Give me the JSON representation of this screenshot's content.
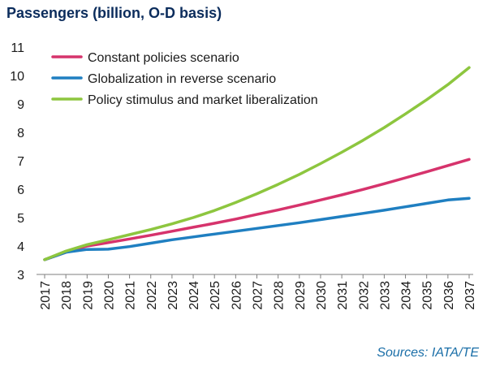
{
  "chart_data": {
    "type": "line",
    "title": "Passengers (billion, O-D basis)",
    "source": "Sources: IATA/TE",
    "xlabel": "",
    "ylabel": "",
    "x": [
      "2017",
      "2018",
      "2019",
      "2020",
      "2021",
      "2022",
      "2023",
      "2024",
      "2025",
      "2026",
      "2027",
      "2028",
      "2029",
      "2030",
      "2031",
      "2032",
      "2033",
      "2034",
      "2035",
      "2036",
      "2037"
    ],
    "ylim": [
      3,
      11
    ],
    "yticks": [
      3,
      4,
      5,
      6,
      7,
      8,
      9,
      10,
      11
    ],
    "grid": false,
    "legend_position": "top-left",
    "series": [
      {
        "name": "Constant policies scenario",
        "color": "#d6336c",
        "values": [
          3.52,
          3.78,
          4.0,
          4.12,
          4.25,
          4.38,
          4.52,
          4.66,
          4.8,
          4.95,
          5.11,
          5.27,
          5.44,
          5.62,
          5.8,
          5.99,
          6.19,
          6.4,
          6.61,
          6.83,
          7.05
        ]
      },
      {
        "name": "Globalization in reverse scenario",
        "color": "#1f7fc1",
        "values": [
          3.52,
          3.78,
          3.88,
          3.89,
          3.98,
          4.1,
          4.22,
          4.32,
          4.42,
          4.52,
          4.62,
          4.72,
          4.82,
          4.93,
          5.04,
          5.15,
          5.26,
          5.38,
          5.5,
          5.62,
          5.68
        ]
      },
      {
        "name": "Policy stimulus and market liberalization",
        "color": "#8dc63f",
        "values": [
          3.52,
          3.82,
          4.05,
          4.22,
          4.4,
          4.58,
          4.78,
          5.0,
          5.25,
          5.53,
          5.84,
          6.17,
          6.52,
          6.9,
          7.3,
          7.72,
          8.17,
          8.65,
          9.15,
          9.68,
          10.28
        ]
      }
    ]
  }
}
